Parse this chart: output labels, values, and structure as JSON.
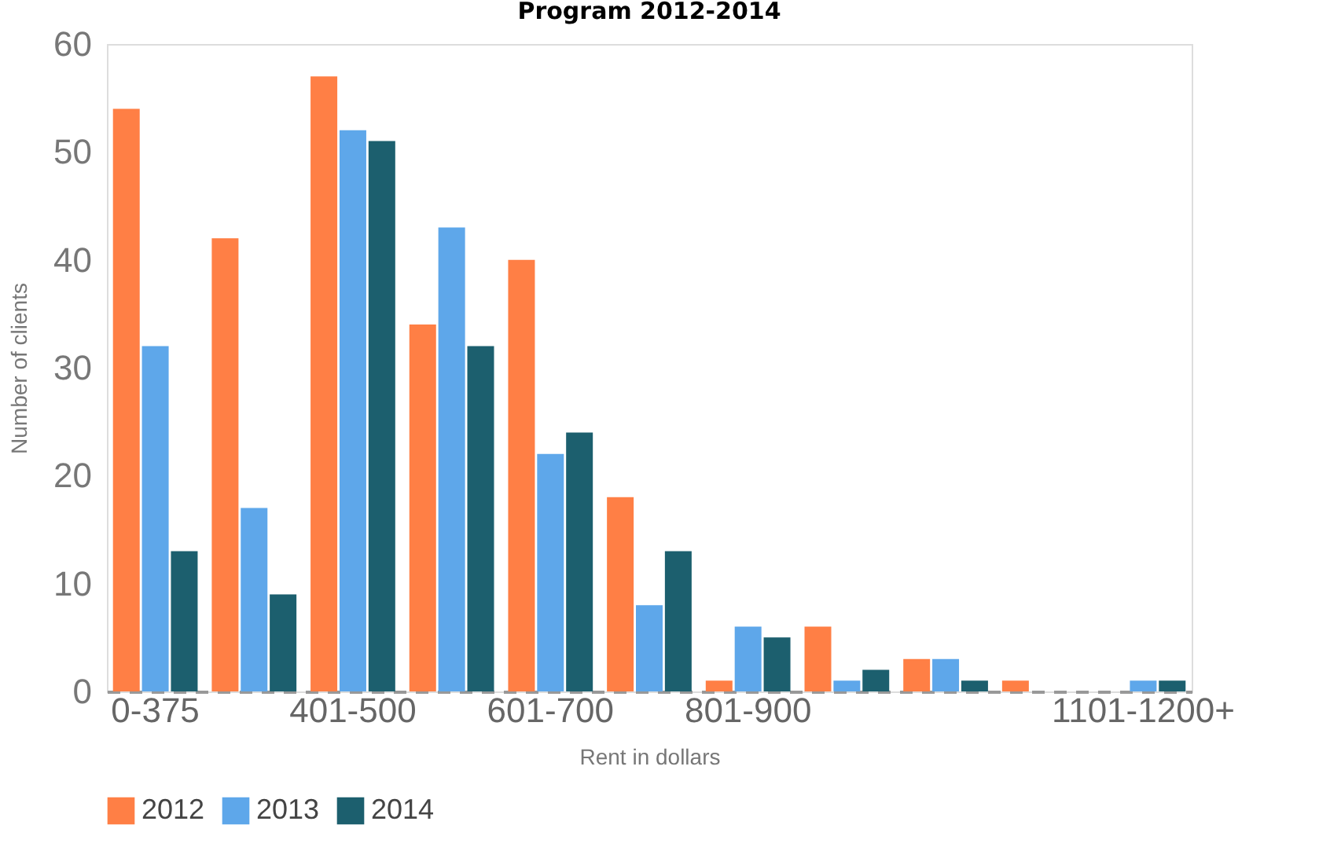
{
  "chart_data": {
    "type": "bar",
    "title": "Program 2012-2014",
    "xlabel": "Rent in dollars",
    "ylabel": "Number of clients",
    "categories": [
      "0-375",
      null,
      "401-500",
      null,
      "601-700",
      null,
      "801-900",
      null,
      null,
      null,
      "1101-1200+"
    ],
    "series": [
      {
        "name": "2012",
        "color": "#ff7f45",
        "values": [
          54,
          42,
          57,
          34,
          40,
          18,
          1,
          6,
          3,
          1,
          0
        ]
      },
      {
        "name": "2013",
        "color": "#5ea7ea",
        "values": [
          32,
          17,
          52,
          43,
          22,
          8,
          6,
          1,
          3,
          0,
          1
        ]
      },
      {
        "name": "2014",
        "color": "#1c5f6e",
        "values": [
          13,
          9,
          51,
          32,
          24,
          13,
          5,
          2,
          1,
          0,
          1
        ]
      }
    ],
    "ylim": [
      0,
      60
    ],
    "yticks": [
      0,
      10,
      20,
      30,
      40,
      50,
      60
    ],
    "grid": false,
    "legend": "bottom"
  }
}
